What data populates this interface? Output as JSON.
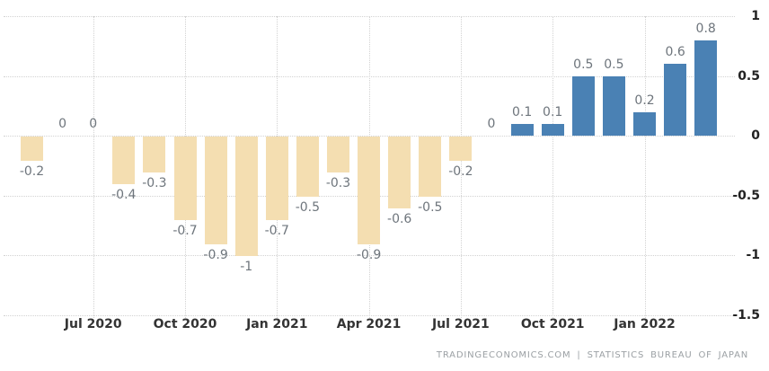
{
  "chart_data": {
    "type": "bar",
    "title": "",
    "xlabel": "",
    "ylabel": "",
    "x": [
      "May 2020",
      "Jun 2020",
      "Jul 2020",
      "Aug 2020",
      "Sep 2020",
      "Oct 2020",
      "Nov 2020",
      "Dec 2020",
      "Jan 2021",
      "Feb 2021",
      "Mar 2021",
      "Apr 2021",
      "May 2021",
      "Jun 2021",
      "Jul 2021",
      "Aug 2021",
      "Sep 2021",
      "Oct 2021",
      "Nov 2021",
      "Dec 2021",
      "Jan 2022",
      "Feb 2022",
      "Mar 2022"
    ],
    "values": [
      -0.2,
      0,
      0,
      -0.4,
      -0.3,
      -0.7,
      -0.9,
      -1,
      -0.7,
      -0.5,
      -0.3,
      -0.9,
      -0.6,
      -0.5,
      -0.2,
      0,
      0.1,
      0.1,
      0.5,
      0.5,
      0.2,
      0.6,
      0.8
    ],
    "value_labels": [
      "-0.2",
      "0",
      "0",
      "-0.4",
      "-0.3",
      "-0.7",
      "-0.9",
      "-1",
      "-0.7",
      "-0.5",
      "-0.3",
      "-0.9",
      "-0.6",
      "-0.5",
      "-0.2",
      "0",
      "0.1",
      "0.1",
      "0.5",
      "0.5",
      "0.2",
      "0.6",
      "0.8"
    ],
    "x_tick_indices": [
      2,
      5,
      8,
      11,
      14,
      17,
      20
    ],
    "x_tick_labels": [
      "Jul 2020",
      "Oct 2020",
      "Jan 2021",
      "Apr 2021",
      "Jul 2021",
      "Oct 2021",
      "Jan 2022"
    ],
    "y_ticks": [
      1,
      0.5,
      0,
      -0.5,
      -1,
      -1.5
    ],
    "y_tick_labels": [
      "1",
      "0.5",
      "0",
      "-0.5",
      "-1",
      "-1.5"
    ],
    "ylim": [
      -1.5,
      1
    ],
    "grid": "dotted",
    "legend": "none",
    "colors": {
      "positive_bar": "#4A81B4",
      "negative_bar": "#F4DEB1",
      "gridline": "#d2d2d2",
      "value_label": "#6e757c",
      "axis_label": "#222222",
      "attribution": "#9ba0a4"
    }
  },
  "footer": {
    "left": "TRADINGECONOMICS.COM",
    "separator": "|",
    "right": "STATISTICS BUREAU OF JAPAN"
  }
}
